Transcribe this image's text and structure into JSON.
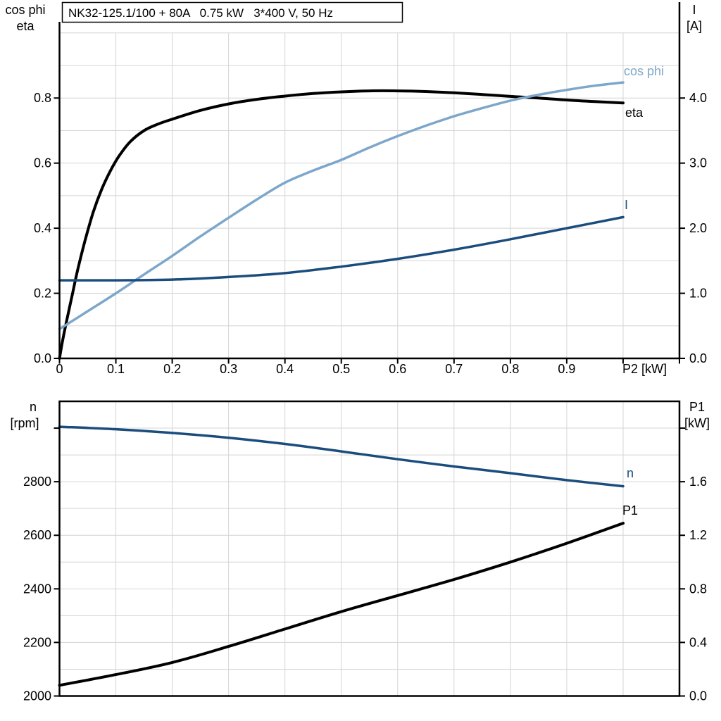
{
  "header": {
    "title": "NK32-125.1/100 + 80A   0.75 kW   3*400 V, 50 Hz"
  },
  "colors": {
    "eta_curve": "#000000",
    "cos_phi_curve": "#7da7ca",
    "current_curve": "#1a4d7d",
    "speed_curve": "#1a4d7d",
    "p1_curve": "#000000",
    "grid": "#d4d4d4",
    "axis": "#000000",
    "background": "#ffffff"
  },
  "chart_data": [
    {
      "type": "line",
      "title": "NK32-125.1/100 + 80A   0.75 kW   3*400 V, 50 Hz",
      "left_axis": {
        "label_lines": [
          "cos phi",
          "eta"
        ],
        "range": [
          0,
          1.0
        ],
        "tick_values": [
          0.0,
          0.2,
          0.4,
          0.6,
          0.8
        ],
        "tick_labels": [
          "0.0",
          "0.2",
          "0.4",
          "0.6",
          "0.8"
        ],
        "grid_step": 0.1
      },
      "right_axis": {
        "label_lines": [
          "I",
          "[A]"
        ],
        "range": [
          0,
          5.0
        ],
        "tick_values": [
          0.0,
          1.0,
          2.0,
          3.0,
          4.0
        ],
        "tick_labels": [
          "0.0",
          "1.0",
          "2.0",
          "3.0",
          "4.0"
        ]
      },
      "x_axis": {
        "label": "P2 [kW]",
        "range": [
          0,
          1.1
        ],
        "tick_values": [
          0,
          0.1,
          0.2,
          0.3,
          0.4,
          0.5,
          0.6,
          0.7,
          0.8,
          0.9,
          1.0,
          1.1
        ],
        "tick_labels": [
          "0",
          "0.1",
          "0.2",
          "0.3",
          "0.4",
          "0.5",
          "0.6",
          "0.7",
          "0.8",
          "0.9"
        ],
        "grid_step": 0.1
      },
      "grid": true,
      "legend_position": "curve-end-labels",
      "series": [
        {
          "name": "eta",
          "label": "eta",
          "axis": "left",
          "color": "#000000",
          "x": [
            0,
            0.005,
            0.012,
            0.022,
            0.032,
            0.045,
            0.06,
            0.075,
            0.09,
            0.105,
            0.125,
            0.15,
            0.175,
            0.2,
            0.25,
            0.3,
            0.35,
            0.4,
            0.45,
            0.5,
            0.55,
            0.6,
            0.65,
            0.7,
            0.75,
            0.8,
            0.85,
            0.9,
            0.95,
            1.0
          ],
          "y": [
            0,
            0.05,
            0.11,
            0.19,
            0.27,
            0.36,
            0.45,
            0.52,
            0.575,
            0.62,
            0.665,
            0.7,
            0.72,
            0.735,
            0.762,
            0.782,
            0.796,
            0.806,
            0.814,
            0.819,
            0.822,
            0.822,
            0.82,
            0.816,
            0.811,
            0.805,
            0.8,
            0.794,
            0.789,
            0.785
          ]
        },
        {
          "name": "cos phi",
          "label": "cos phi",
          "axis": "left",
          "color": "#7da7ca",
          "x": [
            0,
            0.05,
            0.1,
            0.15,
            0.2,
            0.25,
            0.3,
            0.35,
            0.4,
            0.45,
            0.5,
            0.55,
            0.6,
            0.65,
            0.7,
            0.75,
            0.8,
            0.85,
            0.9,
            0.95,
            1.0
          ],
          "y": [
            0.09,
            0.145,
            0.2,
            0.258,
            0.315,
            0.375,
            0.432,
            0.488,
            0.54,
            0.577,
            0.61,
            0.648,
            0.683,
            0.715,
            0.744,
            0.769,
            0.792,
            0.81,
            0.825,
            0.838,
            0.848
          ]
        },
        {
          "name": "I",
          "label": "I",
          "axis": "right",
          "color": "#1a4d7d",
          "x": [
            0,
            0.1,
            0.2,
            0.3,
            0.4,
            0.5,
            0.6,
            0.7,
            0.8,
            0.9,
            1.0
          ],
          "y": [
            1.2,
            1.2,
            1.21,
            1.25,
            1.31,
            1.41,
            1.53,
            1.67,
            1.83,
            2.0,
            2.17
          ]
        }
      ]
    },
    {
      "type": "line",
      "title": "",
      "left_axis": {
        "label_lines": [
          "n",
          "[rpm]"
        ],
        "range": [
          2000,
          3100
        ],
        "tick_values": [
          2000,
          2200,
          2400,
          2600,
          2800,
          3000
        ],
        "tick_labels": [
          "2000",
          "2200",
          "2400",
          "2600",
          "2800"
        ],
        "grid_step": 100
      },
      "right_axis": {
        "label_lines": [
          "P1",
          "[kW]"
        ],
        "range": [
          0,
          2.2
        ],
        "tick_values": [
          0.0,
          0.4,
          0.8,
          1.2,
          1.6,
          2.0
        ],
        "tick_labels": [
          "0.0",
          "0.4",
          "0.8",
          "1.2",
          "1.6"
        ]
      },
      "x_axis": {
        "label": "",
        "range": [
          0,
          1.1
        ],
        "tick_values": [],
        "tick_labels": [],
        "grid_step": 0.1
      },
      "grid": true,
      "legend_position": "curve-end-labels",
      "series": [
        {
          "name": "n",
          "label": "n",
          "axis": "left",
          "color": "#1a4d7d",
          "x": [
            0,
            0.1,
            0.2,
            0.3,
            0.4,
            0.5,
            0.6,
            0.7,
            0.8,
            0.9,
            1.0
          ],
          "y": [
            3005,
            2996,
            2982,
            2964,
            2941,
            2913,
            2884,
            2857,
            2832,
            2806,
            2783
          ]
        },
        {
          "name": "P1",
          "label": "P1",
          "axis": "right",
          "color": "#000000",
          "x": [
            0,
            0.1,
            0.2,
            0.3,
            0.4,
            0.5,
            0.6,
            0.7,
            0.8,
            0.9,
            1.0
          ],
          "y": [
            0.08,
            0.16,
            0.25,
            0.37,
            0.5,
            0.63,
            0.75,
            0.87,
            1.0,
            1.14,
            1.29
          ]
        }
      ]
    }
  ]
}
